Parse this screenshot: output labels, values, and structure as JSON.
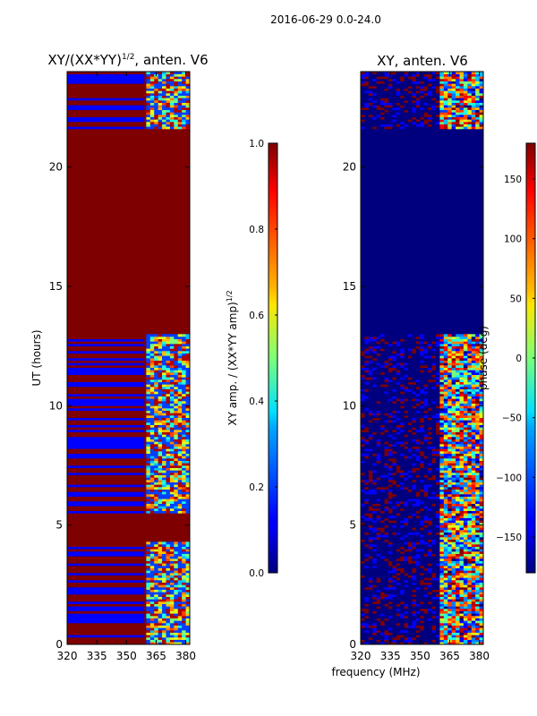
{
  "figure": {
    "suptitle": "2016-06-29 0.0-24.0",
    "shared_xlabel": "frequency (MHz)"
  },
  "chart_data": [
    {
      "type": "heatmap",
      "title_prefix": "XY/(XX*YY)",
      "title_sup": "1/2",
      "title_suffix": ", anten. V6",
      "ylabel": "UT (hours)",
      "xlim": [
        320,
        382
      ],
      "ylim": [
        0,
        24
      ],
      "xticks": [
        320,
        335,
        350,
        365,
        380
      ],
      "yticks": [
        0,
        5,
        10,
        15,
        20
      ],
      "colorbar": {
        "label_main": "XY amp. / (XX*YY amp)",
        "label_sup": "1/2",
        "range": [
          0.0,
          1.0
        ],
        "ticks": [
          "0.0",
          "0.2",
          "0.4",
          "0.6",
          "0.8",
          "1.0"
        ],
        "colormap": "jet"
      },
      "regions": [
        {
          "ut_from": 13.0,
          "ut_to": 21.6,
          "description": "uniform 1.0 (saturated)",
          "value": 1.0
        },
        {
          "ut_from": 4.3,
          "ut_to": 5.5,
          "description": "uniform 1.0 (saturated)",
          "value": 1.0
        }
      ],
      "active_band_mhz": [
        360,
        382
      ]
    },
    {
      "type": "heatmap",
      "title": "XY, anten. V6",
      "xlim": [
        320,
        382
      ],
      "ylim": [
        0,
        24
      ],
      "xticks": [
        320,
        335,
        350,
        365,
        380
      ],
      "yticks": [
        0,
        5,
        10,
        15,
        20
      ],
      "colorbar": {
        "label": "phase (deg)",
        "range": [
          -180,
          180
        ],
        "ticks": [
          "-150",
          "-100",
          "-50",
          "0",
          "50",
          "100",
          "150"
        ],
        "colormap": "jet"
      },
      "regions": [
        {
          "ut_from": 13.0,
          "ut_to": 21.6,
          "description": "uniform -180 (flagged)",
          "value": -180
        }
      ],
      "active_band_mhz": [
        360,
        382
      ]
    }
  ]
}
